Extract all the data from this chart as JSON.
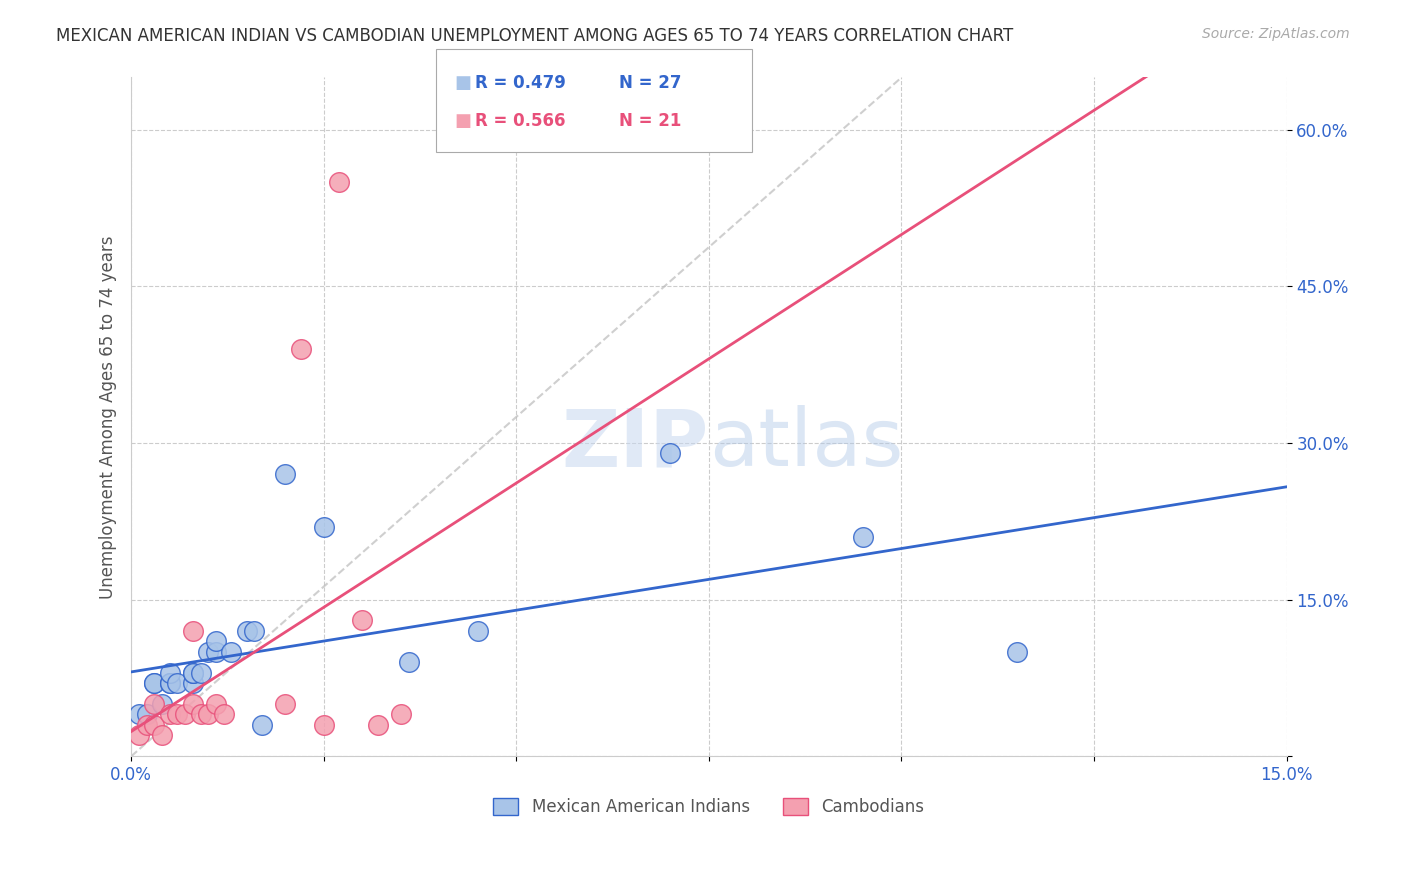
{
  "title": "MEXICAN AMERICAN INDIAN VS CAMBODIAN UNEMPLOYMENT AMONG AGES 65 TO 74 YEARS CORRELATION CHART",
  "source": "Source: ZipAtlas.com",
  "ylabel": "Unemployment Among Ages 65 to 74 years",
  "legend_blue_label": "Mexican American Indians",
  "legend_pink_label": "Cambodians",
  "blue_R": "R = 0.479",
  "blue_N": "N = 27",
  "pink_R": "R = 0.566",
  "pink_N": "N = 21",
  "xlim": [
    0.0,
    0.15
  ],
  "ylim": [
    0.0,
    0.65
  ],
  "xticks": [
    0.0,
    0.025,
    0.05,
    0.075,
    0.1,
    0.125,
    0.15
  ],
  "yticks": [
    0.0,
    0.15,
    0.3,
    0.45,
    0.6
  ],
  "ytick_labels": [
    "",
    "15.0%",
    "30.0%",
    "45.0%",
    "60.0%"
  ],
  "xtick_labels": [
    "0.0%",
    "",
    "",
    "",
    "",
    "",
    "15.0%"
  ],
  "blue_points_x": [
    0.001,
    0.002,
    0.003,
    0.003,
    0.004,
    0.005,
    0.005,
    0.005,
    0.006,
    0.008,
    0.008,
    0.008,
    0.009,
    0.01,
    0.011,
    0.011,
    0.013,
    0.015,
    0.016,
    0.017,
    0.02,
    0.025,
    0.036,
    0.045,
    0.07,
    0.095,
    0.115
  ],
  "blue_points_y": [
    0.04,
    0.04,
    0.07,
    0.07,
    0.05,
    0.07,
    0.07,
    0.08,
    0.07,
    0.07,
    0.08,
    0.08,
    0.08,
    0.1,
    0.1,
    0.11,
    0.1,
    0.12,
    0.12,
    0.03,
    0.27,
    0.22,
    0.09,
    0.12,
    0.29,
    0.21,
    0.1
  ],
  "pink_points_x": [
    0.001,
    0.002,
    0.003,
    0.003,
    0.004,
    0.005,
    0.006,
    0.007,
    0.008,
    0.008,
    0.009,
    0.01,
    0.011,
    0.012,
    0.02,
    0.022,
    0.025,
    0.027,
    0.03,
    0.032,
    0.035
  ],
  "pink_points_y": [
    0.02,
    0.03,
    0.03,
    0.05,
    0.02,
    0.04,
    0.04,
    0.04,
    0.05,
    0.12,
    0.04,
    0.04,
    0.05,
    0.04,
    0.05,
    0.39,
    0.03,
    0.55,
    0.13,
    0.03,
    0.04
  ],
  "blue_color": "#a8c4e8",
  "pink_color": "#f4a0b0",
  "blue_line_color": "#3366cc",
  "pink_line_color": "#e8507a",
  "watermark_zip": "ZIP",
  "watermark_atlas": "atlas",
  "background_color": "#ffffff",
  "grid_color": "#cccccc"
}
